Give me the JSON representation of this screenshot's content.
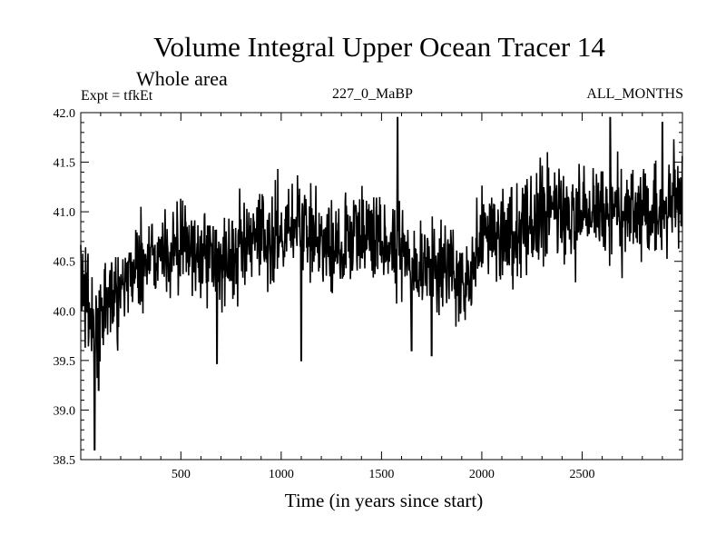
{
  "chart_data": {
    "type": "line",
    "title": "Volume Integral Upper Ocean Tracer 14",
    "subtitle": "Whole area",
    "annotations": {
      "experiment": "Expt = tfkEt",
      "run": "227_0_MaBP",
      "period": "ALL_MONTHS"
    },
    "xlabel": "Time (in years since start)",
    "ylabel": "",
    "xlim": [
      1,
      3000
    ],
    "ylim": [
      38.5,
      42.0
    ],
    "x_ticks": [
      500,
      1000,
      1500,
      2000,
      2500
    ],
    "y_ticks": [
      38.5,
      39.0,
      39.5,
      40.0,
      40.5,
      41.0,
      41.5,
      42.0
    ],
    "y_tick_labels": [
      "38.5",
      "39.0",
      "39.5",
      "40.0",
      "40.5",
      "41.0",
      "41.5",
      "42.0"
    ],
    "grid": false,
    "series": [
      {
        "color": "#000000",
        "x": [
          1,
          20,
          40,
          60,
          80,
          100,
          120,
          140,
          160,
          180,
          200,
          250,
          300,
          350,
          400,
          450,
          500,
          550,
          600,
          650,
          700,
          750,
          800,
          850,
          900,
          950,
          1000,
          1050,
          1100,
          1150,
          1200,
          1250,
          1300,
          1350,
          1400,
          1450,
          1500,
          1550,
          1600,
          1650,
          1700,
          1750,
          1800,
          1850,
          1900,
          1950,
          2000,
          2050,
          2100,
          2150,
          2200,
          2250,
          2300,
          2350,
          2400,
          2450,
          2500,
          2550,
          2600,
          2650,
          2700,
          2750,
          2800,
          2850,
          2900,
          2950,
          3000
        ],
        "values": [
          40.4,
          40.2,
          40.0,
          39.9,
          39.8,
          39.9,
          40.0,
          40.1,
          40.2,
          40.2,
          40.3,
          40.4,
          40.5,
          40.55,
          40.6,
          40.6,
          40.65,
          40.6,
          40.6,
          40.55,
          40.5,
          40.55,
          40.6,
          40.65,
          40.7,
          40.75,
          40.85,
          40.9,
          40.85,
          40.8,
          40.7,
          40.6,
          40.7,
          40.75,
          40.8,
          40.75,
          40.7,
          40.7,
          40.6,
          40.55,
          40.45,
          40.4,
          40.45,
          40.4,
          40.35,
          40.45,
          40.75,
          40.8,
          40.8,
          40.85,
          40.85,
          40.9,
          40.95,
          41.0,
          40.95,
          40.9,
          40.95,
          41.0,
          41.05,
          41.0,
          40.95,
          41.05,
          41.0,
          41.05,
          41.0,
          41.05,
          41.1
        ],
        "noise_amplitude": 0.42,
        "min_points": [
          [
            70,
            38.6
          ],
          [
            90,
            39.2
          ],
          [
            680,
            39.47
          ],
          [
            1100,
            39.5
          ],
          [
            1650,
            39.6
          ],
          [
            1750,
            39.55
          ]
        ],
        "max_points": [
          [
            1580,
            41.95
          ],
          [
            2640,
            41.95
          ],
          [
            2900,
            41.9
          ]
        ]
      }
    ]
  }
}
